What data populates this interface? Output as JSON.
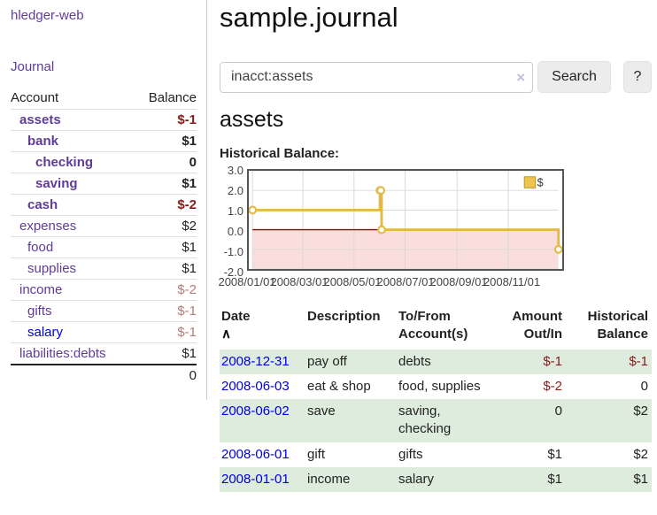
{
  "sidebar": {
    "app_title": "hledger-web",
    "journal_link": "Journal",
    "accounts": {
      "header_account": "Account",
      "header_balance": "Balance",
      "rows": [
        {
          "name": "assets",
          "balance": "$-1",
          "depth": 1,
          "bold": true,
          "amount_class": "neg",
          "link_color": "purple"
        },
        {
          "name": "bank",
          "balance": "$1",
          "depth": 2,
          "bold": true,
          "amount_class": "",
          "link_color": "purple"
        },
        {
          "name": "checking",
          "balance": "0",
          "depth": 3,
          "bold": true,
          "amount_class": "",
          "link_color": "purple"
        },
        {
          "name": "saving",
          "balance": "$1",
          "depth": 3,
          "bold": true,
          "amount_class": "",
          "link_color": "purple"
        },
        {
          "name": "cash",
          "balance": "$-2",
          "depth": 2,
          "bold": true,
          "amount_class": "neg",
          "link_color": "purple"
        },
        {
          "name": "expenses",
          "balance": "$2",
          "depth": 1,
          "bold": false,
          "amount_class": "",
          "link_color": "purple"
        },
        {
          "name": "food",
          "balance": "$1",
          "depth": 2,
          "bold": false,
          "amount_class": "",
          "link_color": "purple"
        },
        {
          "name": "supplies",
          "balance": "$1",
          "depth": 2,
          "bold": false,
          "amount_class": "",
          "link_color": "purple"
        },
        {
          "name": "income",
          "balance": "$-2",
          "depth": 1,
          "bold": false,
          "amount_class": "neg-soft",
          "link_color": "purple"
        },
        {
          "name": "gifts",
          "balance": "$-1",
          "depth": 2,
          "bold": false,
          "amount_class": "neg-soft",
          "link_color": "purple"
        },
        {
          "name": "salary",
          "balance": "$-1",
          "depth": 2,
          "bold": false,
          "amount_class": "neg-soft",
          "link_color": "blue"
        },
        {
          "name": "liabilities:debts",
          "balance": "$1",
          "depth": 1,
          "bold": false,
          "amount_class": "",
          "link_color": "purple"
        }
      ],
      "total": "0"
    }
  },
  "main": {
    "title": "sample.journal",
    "search": {
      "value": "inacct:assets",
      "clear_icon": "×",
      "search_button": "Search",
      "help_button": "?"
    },
    "account_heading": "assets",
    "chart_title": "Historical Balance:"
  },
  "chart_data": {
    "type": "line",
    "step": true,
    "title": "Historical Balance",
    "series": [
      {
        "name": "$",
        "x": [
          "2008-01-01",
          "2008-06-01",
          "2008-06-02",
          "2008-06-03",
          "2008-12-31"
        ],
        "values": [
          1,
          2,
          2,
          0,
          -1
        ]
      }
    ],
    "x_ticks": [
      "2008/01/01",
      "2008/03/01",
      "2008/05/01",
      "2008/07/01",
      "2008/09/01",
      "2008/11/01"
    ],
    "y_ticks": [
      "3.0",
      "2.0",
      "1.0",
      "0.0",
      "-1.0",
      "-2.0"
    ],
    "ylim": [
      -2,
      3
    ],
    "x_range": [
      "2008-01-01",
      "2008-12-31"
    ],
    "grid": true,
    "legend_position": "top-right",
    "legend": [
      {
        "label": "$",
        "color": "#eec44f"
      }
    ],
    "line_color": "#e3ba4a",
    "marker_fill": "#ffffff",
    "negative_region_color": "#fadddd",
    "zero_line_color": "#990000",
    "grid_color": "#d9d9d9",
    "border_color": "#555555"
  },
  "register": {
    "headers": {
      "date": "Date",
      "sort_icon": "∧",
      "description": "Description",
      "accounts": [
        "To/From",
        "Account(s)"
      ],
      "amount": [
        "Amount",
        "Out/In"
      ],
      "balance": [
        "Historical",
        "Balance"
      ]
    },
    "rows": [
      {
        "date": "2008-12-31",
        "description": "pay off",
        "accounts": "debts",
        "amount": "$-1",
        "amount_class": "neg",
        "balance": "$-1",
        "balance_class": "neg",
        "green": true
      },
      {
        "date": "2008-06-03",
        "description": "eat & shop",
        "accounts": "food, supplies",
        "amount": "$-2",
        "amount_class": "neg",
        "balance": "0",
        "balance_class": "",
        "green": false
      },
      {
        "date": "2008-06-02",
        "description": "save",
        "accounts": "saving, checking",
        "amount": "0",
        "amount_class": "",
        "balance": "$2",
        "balance_class": "",
        "green": true
      },
      {
        "date": "2008-06-01",
        "description": "gift",
        "accounts": "gifts",
        "amount": "$1",
        "amount_class": "",
        "balance": "$2",
        "balance_class": "",
        "green": false
      },
      {
        "date": "2008-01-01",
        "description": "income",
        "accounts": "salary",
        "amount": "$1",
        "amount_class": "",
        "balance": "$1",
        "balance_class": "",
        "green": true
      }
    ]
  },
  "colors": {
    "link_purple": "#5f3c9c",
    "link_blue": "#0000dd",
    "negative_strong": "#8b1a1a",
    "negative_soft": "#b87a7a",
    "row_stripe_green": "#ddecdd"
  }
}
